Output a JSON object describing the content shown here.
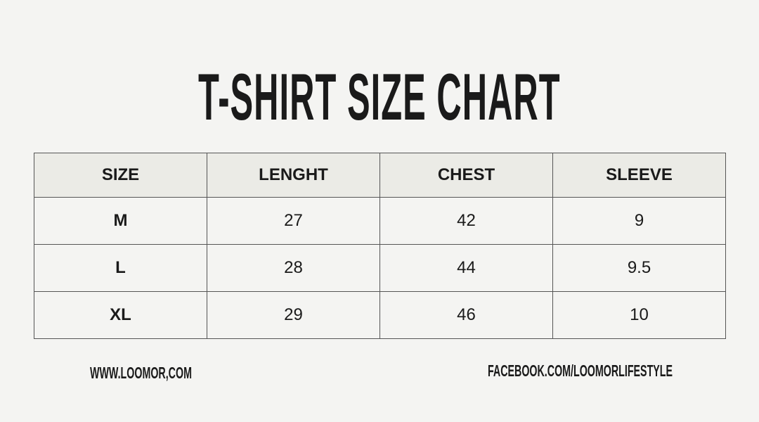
{
  "title": "T-SHIRT SIZE CHART",
  "table": {
    "headers": [
      "SIZE",
      "LENGHT",
      "CHEST",
      "SLEEVE"
    ],
    "rows": [
      [
        "M",
        "27",
        "42",
        "9"
      ],
      [
        "L",
        "28",
        "44",
        "9.5"
      ],
      [
        "XL",
        "29",
        "46",
        "10"
      ]
    ]
  },
  "footer": {
    "website": "WWW.LOOMOR,COM",
    "facebook": "FACEBOOK.COM/LOOMORLIFESTYLE"
  },
  "colors": {
    "background": "#f4f4f2",
    "header_background": "#ebebe6",
    "text": "#1a1a1a"
  }
}
